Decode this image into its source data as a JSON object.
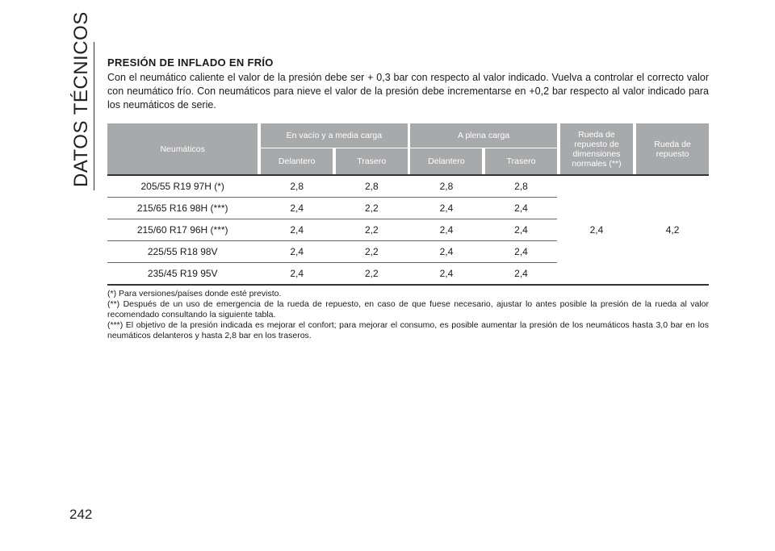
{
  "sidebar": {
    "title": "DATOS TÉCNICOS"
  },
  "page_number": "242",
  "section": {
    "title": "PRESIÓN DE INFLADO EN FRÍO",
    "intro": "Con el neumático caliente el valor de la presión debe ser + 0,3 bar con respecto al valor indicado. Vuelva a controlar el correcto valor con neumático frío. Con neumáticos para nieve el valor de la presión debe incrementarse en +0,2 bar respecto al valor indicado para los neumáticos de serie."
  },
  "table": {
    "headers": {
      "tyres": "Neumáticos",
      "empty_load": "En vacío y a media carga",
      "full_load": "A plena carga",
      "front": "Delantero",
      "rear": "Trasero",
      "spare_dim": "Rueda de repuesto de dimensiones normales (**)",
      "spare": "Rueda de repuesto"
    },
    "rows": [
      {
        "tyre": "205/55 R19 97H (*)",
        "empty_front": "2,8",
        "empty_rear": "2,8",
        "full_front": "2,8",
        "full_rear": "2,8"
      },
      {
        "tyre": "215/65 R16 98H (***)",
        "empty_front": "2,4",
        "empty_rear": "2,2",
        "full_front": "2,4",
        "full_rear": "2,4"
      },
      {
        "tyre": "215/60 R17 96H (***)",
        "empty_front": "2,4",
        "empty_rear": "2,2",
        "full_front": "2,4",
        "full_rear": "2,4"
      },
      {
        "tyre": "225/55 R18 98V",
        "empty_front": "2,4",
        "empty_rear": "2,2",
        "full_front": "2,4",
        "full_rear": "2,4"
      },
      {
        "tyre": "235/45 R19 95V",
        "empty_front": "2,4",
        "empty_rear": "2,2",
        "full_front": "2,4",
        "full_rear": "2,4"
      }
    ],
    "spare_dim_value": "2,4",
    "spare_value": "4,2"
  },
  "footnotes": [
    "(*) Para versiones/países donde esté previsto.",
    "(**) Después de un uso de emergencia de la rueda de repuesto, en caso de que fuese necesario, ajustar lo antes posible la presión de la rueda al valor recomendado consultando la siguiente tabla.",
    "(***) El objetivo de la presión indicada es mejorar el confort; para mejorar el consumo, es posible aumentar la presión de los neumáticos hasta 3,0 bar en los neumáticos delanteros y hasta 2,8 bar en los traseros."
  ]
}
